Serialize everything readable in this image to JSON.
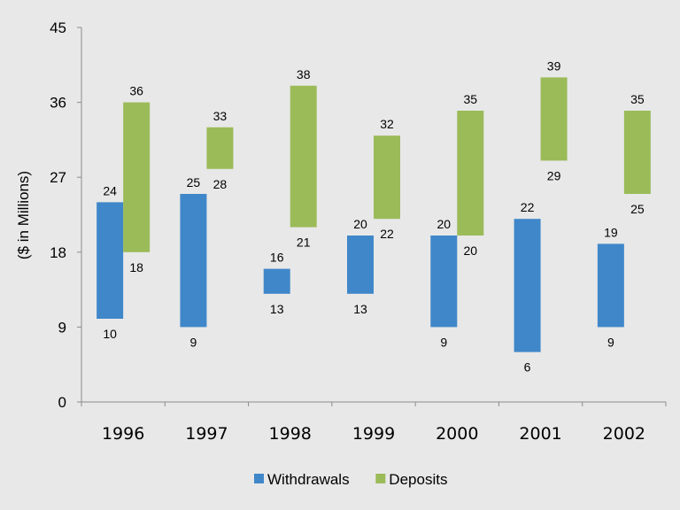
{
  "chart_data": {
    "type": "floating-bar",
    "title": "",
    "xlabel": "",
    "ylabel": "($ in Millions)",
    "ylim": [
      0,
      45
    ],
    "yticks": [
      0,
      9,
      18,
      27,
      36,
      45
    ],
    "grid": false,
    "legend_position": "bottom",
    "categories": [
      "1996",
      "1997",
      "1998",
      "1999",
      "2000",
      "2001",
      "2002"
    ],
    "series": [
      {
        "name": "Withdrawals",
        "color": "#3f87c9",
        "low": [
          10,
          9,
          13,
          13,
          9,
          6,
          9
        ],
        "high": [
          24,
          25,
          16,
          20,
          20,
          22,
          19
        ]
      },
      {
        "name": "Deposits",
        "color": "#9bbb59",
        "low": [
          18,
          28,
          21,
          22,
          20,
          29,
          25
        ],
        "high": [
          36,
          33,
          38,
          32,
          35,
          39,
          35
        ]
      }
    ]
  },
  "background": "#e8e8e8"
}
